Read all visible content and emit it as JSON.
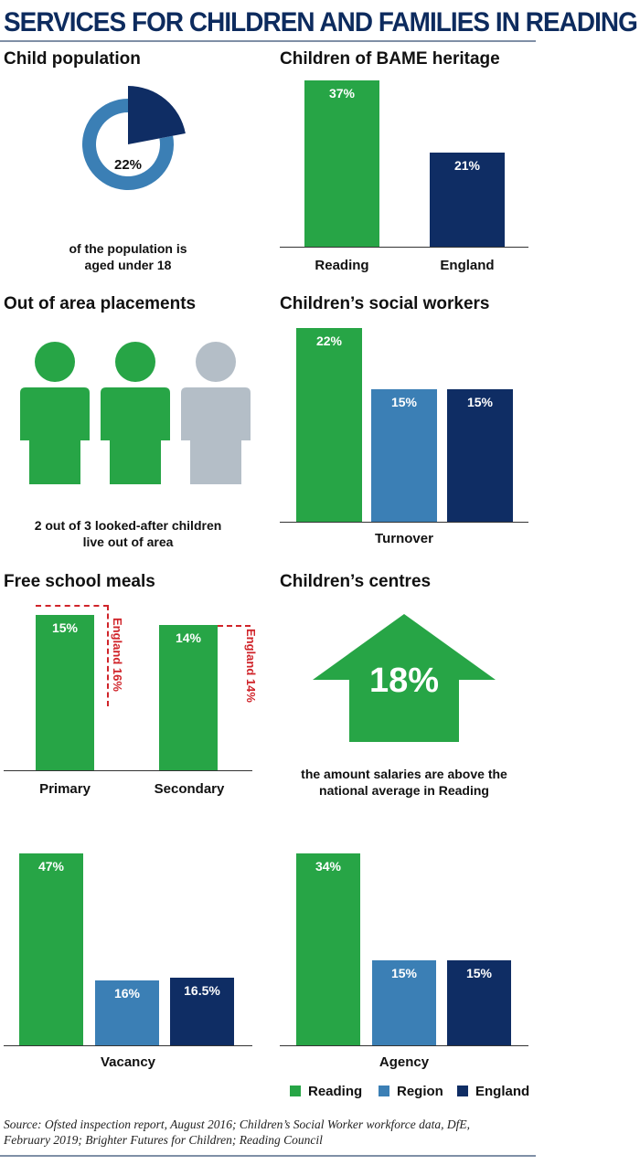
{
  "page": {
    "title": "SERVICES FOR CHILDREN AND FAMILIES IN READING",
    "source": "Source: Ofsted inspection report, August 2016; Children’s Social Worker workforce data, DfE, February 2019; Brighter Futures for Children; Reading Council"
  },
  "colors": {
    "reading": "#27a546",
    "region": "#3b7fb5",
    "england": "#0f2d64",
    "grey": "#b4bec7",
    "red": "#d0242a"
  },
  "panels": {
    "child_population": {
      "title": "Child population",
      "value_label": "22%",
      "caption_line1": "of the population is",
      "caption_line2": "aged under 18"
    },
    "bame": {
      "title": "Children of BAME heritage"
    },
    "placements": {
      "title": "Out of area placements",
      "caption_line1": "2 out of 3 looked-after children",
      "caption_line2": "live out of area"
    },
    "social_workers": {
      "title": "Children’s social workers"
    },
    "free_school_meals": {
      "title": "Free school meals"
    },
    "childrens_centres": {
      "title": "Children’s centres",
      "value_label": "18%",
      "caption_line1": "the amount salaries are above the",
      "caption_line2": "national average in Reading"
    }
  },
  "legend": {
    "reading": "Reading",
    "region": "Region",
    "england": "England"
  },
  "chart_data": [
    {
      "type": "pie",
      "title": "Child population",
      "values": [
        22,
        78
      ],
      "labels": [
        "22%",
        ""
      ]
    },
    {
      "type": "bar",
      "title": "Children of BAME heritage",
      "categories": [
        "Reading",
        "England"
      ],
      "values": [
        37,
        21
      ],
      "labels": [
        "37%",
        "21%"
      ]
    },
    {
      "type": "pictogram",
      "title": "Out of area placements",
      "values": [
        2,
        3
      ]
    },
    {
      "type": "bar",
      "title": "Children’s social workers",
      "categories": [
        "Turnover"
      ],
      "series": [
        {
          "name": "Reading",
          "values": [
            22
          ],
          "labels": [
            "22%"
          ]
        },
        {
          "name": "Region",
          "values": [
            15
          ],
          "labels": [
            "15%"
          ]
        },
        {
          "name": "England",
          "values": [
            15
          ],
          "labels": [
            "15%"
          ]
        }
      ]
    },
    {
      "type": "bar",
      "title": "Free school meals",
      "categories": [
        "Primary",
        "Secondary"
      ],
      "values": [
        15,
        14
      ],
      "labels": [
        "15%",
        "14%"
      ],
      "reference": {
        "values": [
          16,
          14
        ],
        "labels": [
          "England 16%",
          "England 14%"
        ]
      }
    },
    {
      "type": "bar",
      "categories": [
        "Vacancy"
      ],
      "series": [
        {
          "name": "Reading",
          "values": [
            47
          ],
          "labels": [
            "47%"
          ]
        },
        {
          "name": "Region",
          "values": [
            16
          ],
          "labels": [
            "16%"
          ]
        },
        {
          "name": "England",
          "values": [
            16.5
          ],
          "labels": [
            "16.5%"
          ]
        }
      ]
    },
    {
      "type": "bar",
      "categories": [
        "Agency"
      ],
      "series": [
        {
          "name": "Reading",
          "values": [
            34
          ],
          "labels": [
            "34%"
          ]
        },
        {
          "name": "Region",
          "values": [
            15
          ],
          "labels": [
            "15%"
          ]
        },
        {
          "name": "England",
          "values": [
            15
          ],
          "labels": [
            "15%"
          ]
        }
      ]
    }
  ]
}
